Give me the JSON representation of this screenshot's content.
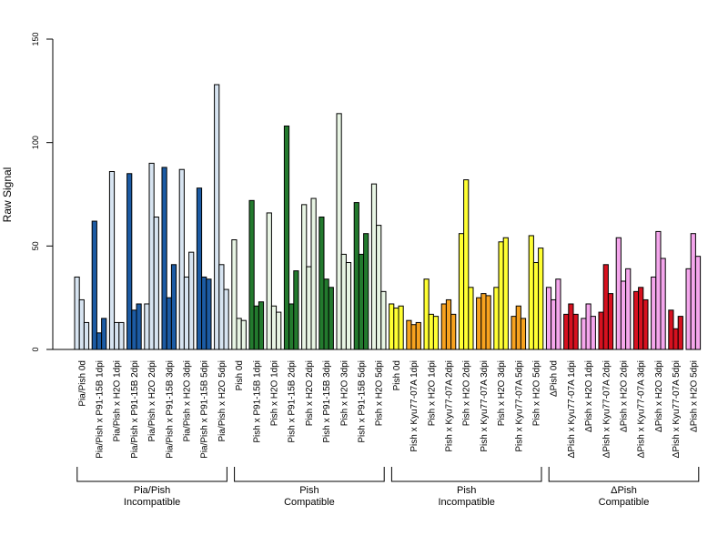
{
  "chart_data": {
    "type": "bar",
    "title": "",
    "ylabel": "Raw Signal",
    "xlabel": "",
    "ylim": [
      0,
      150
    ],
    "yticks": [
      0,
      50,
      100,
      150
    ],
    "replicates": 3,
    "groups": [
      {
        "line1": "Pia/Pish",
        "line2": "Incompatible",
        "conditions": [
          {
            "label": "Pia/Pish 0d",
            "color": "#d7e4f1",
            "values": [
              35,
              24,
              13
            ]
          },
          {
            "label": "Pia/Pish x P91-15B 1dpi",
            "color": "#1c5ba4",
            "values": [
              62,
              8,
              15
            ]
          },
          {
            "label": "Pia/Pish x H2O 1dpi",
            "color": "#d7e4f1",
            "values": [
              86,
              13,
              13
            ]
          },
          {
            "label": "Pia/Pish x P91-15B 2dpi",
            "color": "#1c5ba4",
            "values": [
              85,
              19,
              22
            ]
          },
          {
            "label": "Pia/Pish x H2O 2dpi",
            "color": "#d7e4f1",
            "values": [
              22,
              90,
              64
            ]
          },
          {
            "label": "Pia/Pish x P91-15B 3dpi",
            "color": "#1c5ba4",
            "values": [
              88,
              25,
              41
            ]
          },
          {
            "label": "Pia/Pish x H2O 3dpi",
            "color": "#d7e4f1",
            "values": [
              87,
              35,
              47
            ]
          },
          {
            "label": "Pia/Pish x P91-15B 5dpi",
            "color": "#1c5ba4",
            "values": [
              78,
              35,
              34
            ]
          },
          {
            "label": "Pia/Pish x H2O 5dpi",
            "color": "#d7e4f1",
            "values": [
              128,
              41,
              29
            ]
          }
        ]
      },
      {
        "line1": "Pish",
        "line2": "Compatible",
        "conditions": [
          {
            "label": "Pish 0d",
            "color": "#e8f5e4",
            "values": [
              53,
              15,
              14
            ]
          },
          {
            "label": "Pish x P91-15B 1dpi",
            "color": "#237a2e",
            "values": [
              72,
              21,
              23
            ]
          },
          {
            "label": "Pish x H2O 1dpi",
            "color": "#e8f5e4",
            "values": [
              66,
              21,
              18
            ]
          },
          {
            "label": "Pish x P91-15B 2dpi",
            "color": "#237a2e",
            "values": [
              108,
              22,
              38
            ]
          },
          {
            "label": "Pish x H2O 2dpi",
            "color": "#e8f5e4",
            "values": [
              70,
              40,
              73
            ]
          },
          {
            "label": "Pish x P91-15B 3dpi",
            "color": "#237a2e",
            "values": [
              64,
              34,
              30
            ]
          },
          {
            "label": "Pish x H2O 3dpi",
            "color": "#e8f5e4",
            "values": [
              114,
              46,
              42
            ]
          },
          {
            "label": "Pish x P91-15B 5dpi",
            "color": "#237a2e",
            "values": [
              71,
              46,
              56
            ]
          },
          {
            "label": "Pish x H2O 5dpi",
            "color": "#e8f5e4",
            "values": [
              80,
              60,
              28
            ]
          }
        ]
      },
      {
        "line1": "Pish",
        "line2": "Incompatible",
        "conditions": [
          {
            "label": "Pish 0d",
            "color": "#ffff33",
            "values": [
              22,
              20,
              21
            ]
          },
          {
            "label": "Pish x Kyu77-07A 1dpi",
            "color": "#f7a21f",
            "values": [
              14,
              12,
              13
            ]
          },
          {
            "label": "Pish x H2O 1dpi",
            "color": "#ffff33",
            "values": [
              34,
              17,
              16
            ]
          },
          {
            "label": "Pish x Kyu77-07A 2dpi",
            "color": "#f7a21f",
            "values": [
              22,
              24,
              17
            ]
          },
          {
            "label": "Pish x H2O 2dpi",
            "color": "#ffff33",
            "values": [
              56,
              82,
              30
            ]
          },
          {
            "label": "Pish x Kyu77-07A 3dpi",
            "color": "#f7a21f",
            "values": [
              25,
              27,
              26
            ]
          },
          {
            "label": "Pish x H2O 3dpi",
            "color": "#ffff33",
            "values": [
              30,
              52,
              54
            ]
          },
          {
            "label": "Pish x Kyu77-07A 5dpi",
            "color": "#f7a21f",
            "values": [
              16,
              21,
              15
            ]
          },
          {
            "label": "Pish x H2O 5dpi",
            "color": "#ffff33",
            "values": [
              55,
              42,
              49
            ]
          }
        ]
      },
      {
        "line1": "ΔPish",
        "line2": "Compatible",
        "conditions": [
          {
            "label": "ΔPish 0d",
            "color": "#f4a6ec",
            "values": [
              30,
              24,
              34
            ]
          },
          {
            "label": "ΔPish x Kyu77-07A 1dpi",
            "color": "#d7111f",
            "values": [
              17,
              22,
              17
            ]
          },
          {
            "label": "ΔPish x H2O 1dpi",
            "color": "#f4a6ec",
            "values": [
              15,
              22,
              16
            ]
          },
          {
            "label": "ΔPish x Kyu77-07A 2dpi",
            "color": "#d7111f",
            "values": [
              18,
              41,
              27
            ]
          },
          {
            "label": "ΔPish x H2O 2dpi",
            "color": "#f4a6ec",
            "values": [
              54,
              33,
              39
            ]
          },
          {
            "label": "ΔPish x Kyu77-07A 3dpi",
            "color": "#d7111f",
            "values": [
              28,
              30,
              24
            ]
          },
          {
            "label": "ΔPish x H2O 3dpi",
            "color": "#f4a6ec",
            "values": [
              35,
              57,
              44
            ]
          },
          {
            "label": "ΔPish x Kyu77-07A 5dpi",
            "color": "#d7111f",
            "values": [
              19,
              10,
              16
            ]
          },
          {
            "label": "ΔPish x H2O 5dpi",
            "color": "#f4a6ec",
            "values": [
              39,
              56,
              45
            ]
          }
        ]
      }
    ]
  }
}
